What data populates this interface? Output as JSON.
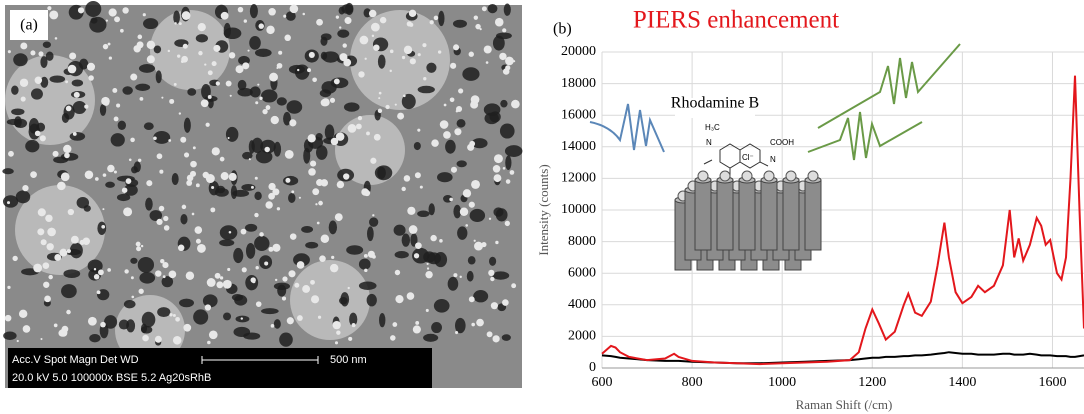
{
  "panel_a": {
    "label": "(a)",
    "info_header": "Acc.V  Spot Magn    Det  WD",
    "scale": "500 nm",
    "info_values": "20.0 kV 5.0   100000x BSE 5.2    Ag20sRhB"
  },
  "chart_data": {
    "type": "line",
    "label": "(b)",
    "title": "PIERS enhancement",
    "inset_label": "Rhodamine B",
    "molecule_labels": [
      "H₃C",
      "Cl⁻",
      "N",
      "N",
      "COOH"
    ],
    "x_label": "Raman Shift (/cm)",
    "y_label": "Intensity (counts)",
    "x": [
      600,
      620,
      630,
      640,
      660,
      700,
      740,
      760,
      770,
      800,
      850,
      900,
      950,
      1000,
      1050,
      1100,
      1150,
      1170,
      1185,
      1200,
      1215,
      1230,
      1250,
      1270,
      1280,
      1295,
      1310,
      1330,
      1345,
      1360,
      1370,
      1385,
      1400,
      1420,
      1435,
      1450,
      1470,
      1490,
      1505,
      1515,
      1525,
      1535,
      1550,
      1565,
      1575,
      1585,
      1595,
      1610,
      1620,
      1630,
      1640,
      1650,
      1660,
      1670
    ],
    "series": [
      {
        "color": "#e3171c",
        "values": [
          900,
          1400,
          1300,
          1000,
          700,
          500,
          600,
          900,
          700,
          450,
          350,
          300,
          250,
          300,
          350,
          400,
          500,
          1000,
          2500,
          3700,
          2800,
          1800,
          2300,
          4000,
          4700,
          3500,
          3300,
          4200,
          6500,
          9200,
          7000,
          4800,
          4100,
          4500,
          5200,
          4800,
          5200,
          6500,
          10000,
          7000,
          8200,
          6800,
          7800,
          9500,
          9000,
          7800,
          8100,
          6000,
          5600,
          7000,
          12000,
          18500,
          10000,
          2500
        ]
      },
      {
        "color": "#000000",
        "values": [
          800,
          750,
          700,
          650,
          600,
          500,
          450,
          450,
          450,
          400,
          350,
          300,
          300,
          350,
          400,
          450,
          500,
          550,
          600,
          650,
          650,
          700,
          700,
          750,
          750,
          800,
          800,
          850,
          900,
          950,
          1000,
          950,
          900,
          900,
          850,
          850,
          850,
          900,
          900,
          850,
          850,
          850,
          900,
          850,
          800,
          800,
          800,
          750,
          750,
          750,
          700,
          700,
          750,
          800
        ]
      }
    ],
    "xlim": [
      600,
      1670
    ],
    "ylim": [
      0,
      20000
    ],
    "xticks": [
      600,
      800,
      1000,
      1200,
      1400,
      1600
    ],
    "yticks": [
      0,
      2000,
      4000,
      6000,
      8000,
      10000,
      12000,
      14000,
      16000,
      18000,
      20000
    ],
    "grid": true
  }
}
